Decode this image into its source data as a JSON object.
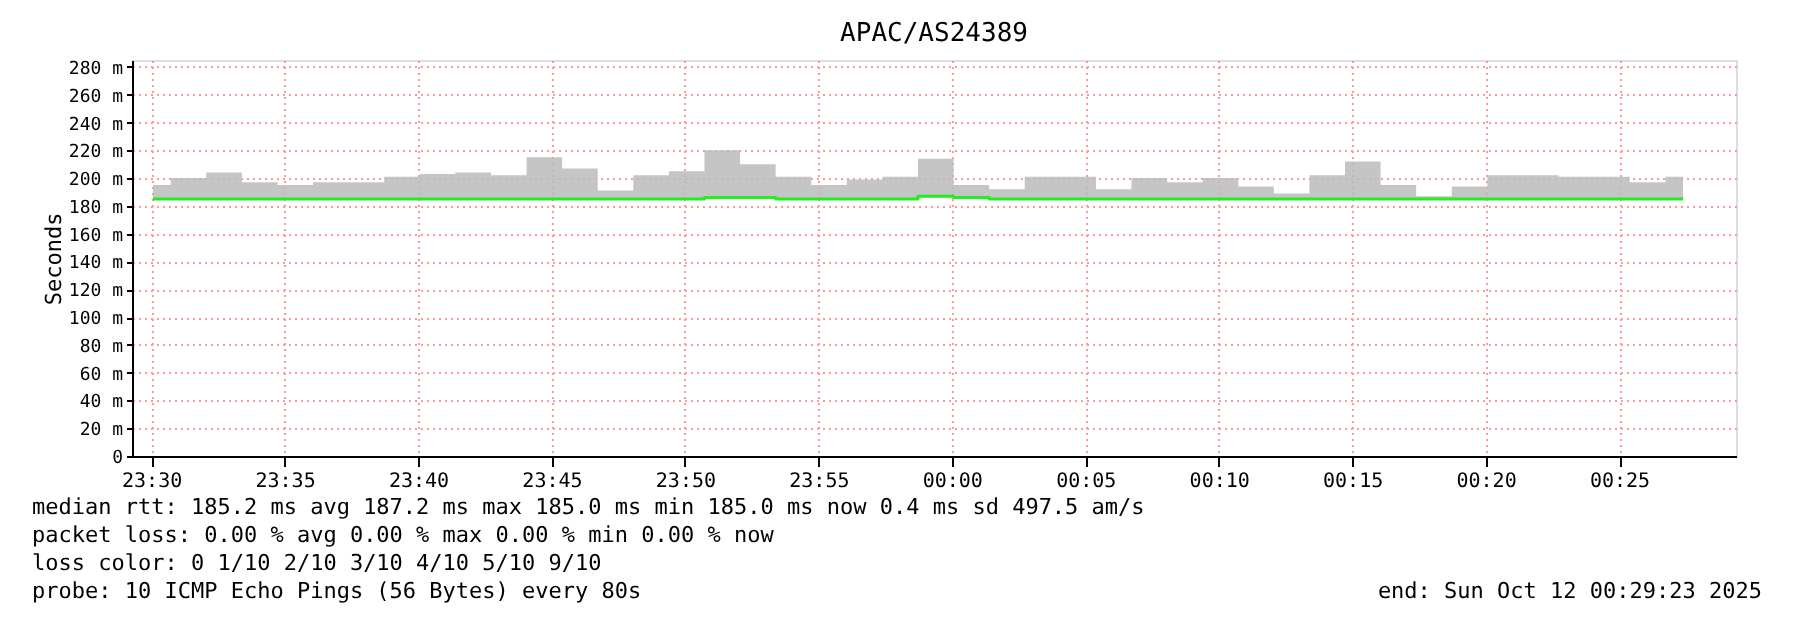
{
  "chart_data": {
    "type": "step",
    "title": "APAC/AS24389",
    "ylabel": "Seconds",
    "x": [
      "2025-10-11T23:30:04",
      "2025-10-11T23:31:24",
      "2025-10-11T23:32:44",
      "2025-10-11T23:34:04",
      "2025-10-11T23:35:24",
      "2025-10-11T23:36:44",
      "2025-10-11T23:38:04",
      "2025-10-11T23:39:24",
      "2025-10-11T23:40:44",
      "2025-10-11T23:42:04",
      "2025-10-11T23:43:24",
      "2025-10-11T23:44:44",
      "2025-10-11T23:46:04",
      "2025-10-11T23:47:24",
      "2025-10-11T23:48:44",
      "2025-10-11T23:50:04",
      "2025-10-11T23:51:24",
      "2025-10-11T23:52:44",
      "2025-10-11T23:54:04",
      "2025-10-11T23:55:24",
      "2025-10-11T23:56:44",
      "2025-10-11T23:58:04",
      "2025-10-11T23:59:24",
      "2025-10-12T00:00:44",
      "2025-10-12T00:02:04",
      "2025-10-12T00:03:24",
      "2025-10-12T00:04:44",
      "2025-10-12T00:06:04",
      "2025-10-12T00:07:24",
      "2025-10-12T00:08:44",
      "2025-10-12T00:10:04",
      "2025-10-12T00:11:24",
      "2025-10-12T00:12:44",
      "2025-10-12T00:14:04",
      "2025-10-12T00:15:24",
      "2025-10-12T00:16:44",
      "2025-10-12T00:18:04",
      "2025-10-12T00:19:24",
      "2025-10-12T00:20:44",
      "2025-10-12T00:22:04",
      "2025-10-12T00:23:24",
      "2025-10-12T00:24:44",
      "2025-10-12T00:26:04",
      "2025-10-12T00:27:24"
    ],
    "series": [
      {
        "color": "#22ee22",
        "values": [
          185,
          185,
          185,
          185,
          185,
          185,
          185,
          185,
          185,
          185,
          185,
          185,
          185,
          185,
          185,
          185,
          186,
          186,
          185,
          185,
          185,
          185,
          187,
          186,
          185,
          185,
          185,
          185,
          185,
          185,
          185,
          185,
          185,
          185,
          185,
          185,
          185,
          185,
          185,
          185,
          185,
          185,
          185,
          185
        ],
        "lower": [
          185,
          185,
          185,
          185,
          185,
          185,
          185,
          185,
          185,
          185,
          185,
          185,
          185,
          185,
          185,
          185,
          186,
          186,
          185,
          185,
          185,
          185,
          187,
          186,
          185,
          185,
          185,
          185,
          185,
          185,
          185,
          185,
          185,
          185,
          185,
          185,
          185,
          185,
          185,
          185,
          185,
          185,
          185,
          185
        ],
        "upper": [
          195,
          200,
          204,
          197,
          195,
          197,
          197,
          201,
          203,
          204,
          202,
          215,
          207,
          191,
          202,
          205,
          220,
          210,
          201,
          195,
          199,
          201,
          214,
          195,
          192,
          201,
          201,
          192,
          200,
          197,
          200,
          194,
          189,
          202,
          212,
          195,
          187,
          194,
          202,
          202,
          201,
          201,
          197,
          201
        ]
      }
    ],
    "xlim": [
      "2025-10-11T23:29:17",
      "2025-10-12T00:29:23"
    ],
    "xticks": [
      {
        "value": "2025-10-11T23:30",
        "label": "23:30"
      },
      {
        "value": "2025-10-11T23:35",
        "label": "23:35"
      },
      {
        "value": "2025-10-11T23:40",
        "label": "23:40"
      },
      {
        "value": "2025-10-11T23:45",
        "label": "23:45"
      },
      {
        "value": "2025-10-11T23:50",
        "label": "23:50"
      },
      {
        "value": "2025-10-11T23:55",
        "label": "23:55"
      },
      {
        "value": "2025-10-12T00:00",
        "label": "00:00"
      },
      {
        "value": "2025-10-12T00:05",
        "label": "00:05"
      },
      {
        "value": "2025-10-12T00:10",
        "label": "00:10"
      },
      {
        "value": "2025-10-12T00:15",
        "label": "00:15"
      },
      {
        "value": "2025-10-12T00:20",
        "label": "00:20"
      },
      {
        "value": "2025-10-12T00:25",
        "label": "00:25"
      }
    ],
    "ylim": [
      0,
      285
    ],
    "yticks": [
      0,
      {
        "value": 20,
        "label": "20 m"
      },
      {
        "value": 40,
        "label": "40 m"
      },
      {
        "value": 60,
        "label": "60 m"
      },
      {
        "value": 80,
        "label": "80 m"
      },
      {
        "value": 100,
        "label": "100 m"
      },
      {
        "value": 120,
        "label": "120 m"
      },
      {
        "value": 140,
        "label": "140 m"
      },
      {
        "value": 160,
        "label": "160 m"
      },
      {
        "value": 180,
        "label": "180 m"
      },
      {
        "value": 200,
        "label": "200 m"
      },
      {
        "value": 220,
        "label": "220 m"
      },
      {
        "value": 240,
        "label": "240 m"
      },
      {
        "value": 260,
        "label": "260 m"
      },
      {
        "value": 280,
        "label": "280 m"
      }
    ],
    "grid": true,
    "annotations": [
      "median rtt:  185.2 ms avg  187.2 ms max  185.0 ms min  185.0 ms now  0.4 ms sd  497.5   am/s",
      "packet loss: 0.00 % avg  0.00 % max  0.00 % min  0.00 % now",
      "loss color:    0   1/10   2/10   3/10   4/10   5/10   9/10",
      "probe:       10 ICMP Echo Pings (56 Bytes) every 80s",
      "end: Sun Oct 12 00:29:23 2025"
    ]
  }
}
